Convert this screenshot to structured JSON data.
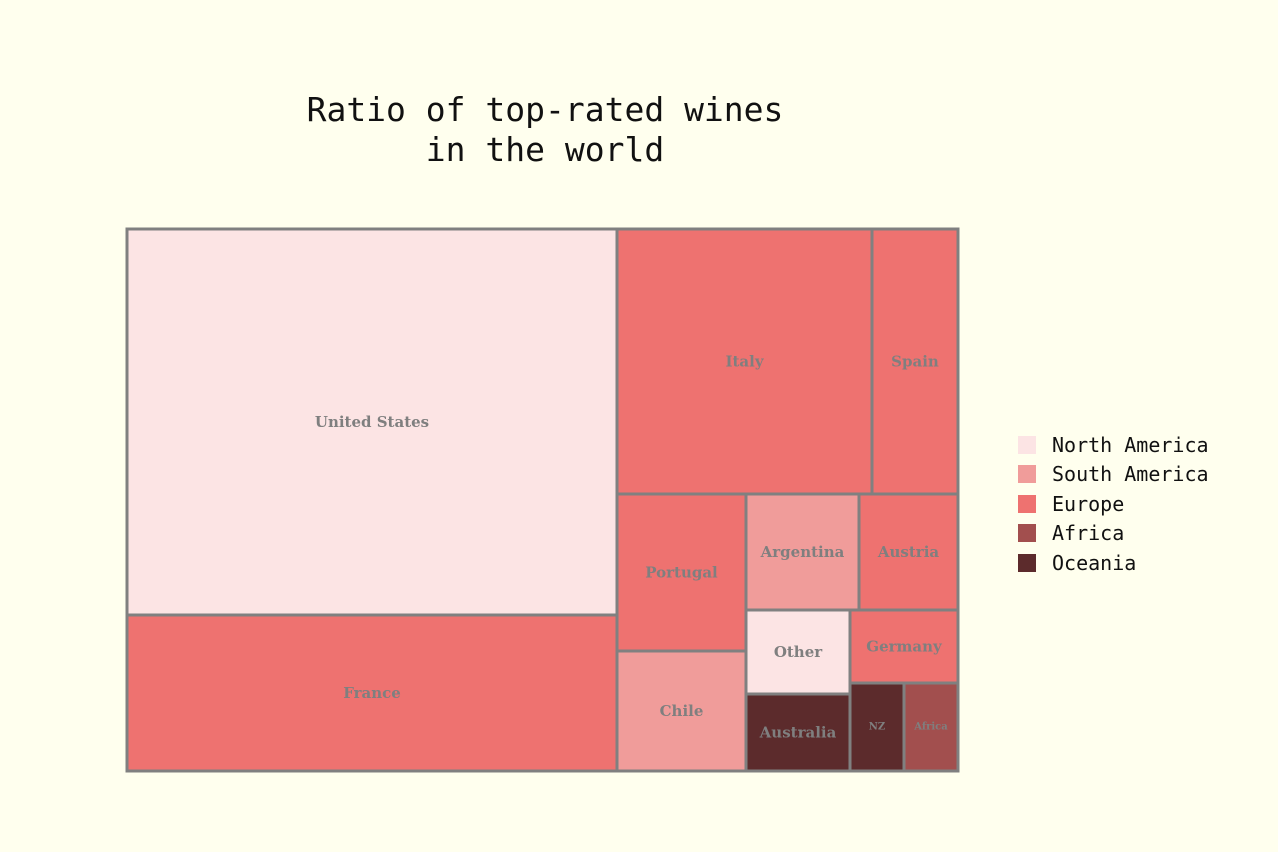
{
  "chart_data": {
    "type": "treemap",
    "title_lines": [
      "Ratio of top-rated wines",
      "in the world"
    ],
    "legend": [
      {
        "name": "North America",
        "color": "#FCE4E4"
      },
      {
        "name": "South America",
        "color": "#F09C9A"
      },
      {
        "name": "Europe",
        "color": "#EE7270"
      },
      {
        "name": "Africa",
        "color": "#A24F4E"
      },
      {
        "name": "Oceania",
        "color": "#5C2B2C"
      }
    ],
    "border_color": "#808080",
    "items": [
      {
        "label": "United States",
        "region": "North America",
        "value": 37.3
      },
      {
        "label": "France",
        "region": "Europe",
        "value": 15.1
      },
      {
        "label": "Italy",
        "region": "Europe",
        "value": 13.5
      },
      {
        "label": "Spain",
        "region": "Europe",
        "value": 4.6
      },
      {
        "label": "Portugal",
        "region": "Europe",
        "value": 4.0
      },
      {
        "label": "Chile",
        "region": "South America",
        "value": 2.5
      },
      {
        "label": "Argentina",
        "region": "South America",
        "value": 2.6
      },
      {
        "label": "Austria",
        "region": "Europe",
        "value": 2.2
      },
      {
        "label": "Other",
        "region": "North America",
        "value": 1.7
      },
      {
        "label": "Germany",
        "region": "Europe",
        "value": 1.5
      },
      {
        "label": "Australia",
        "region": "Oceania",
        "value": 1.6
      },
      {
        "label": "NZ",
        "region": "Oceania",
        "value": 0.9
      },
      {
        "label": "Africa",
        "region": "Africa",
        "value": 0.9
      }
    ]
  }
}
